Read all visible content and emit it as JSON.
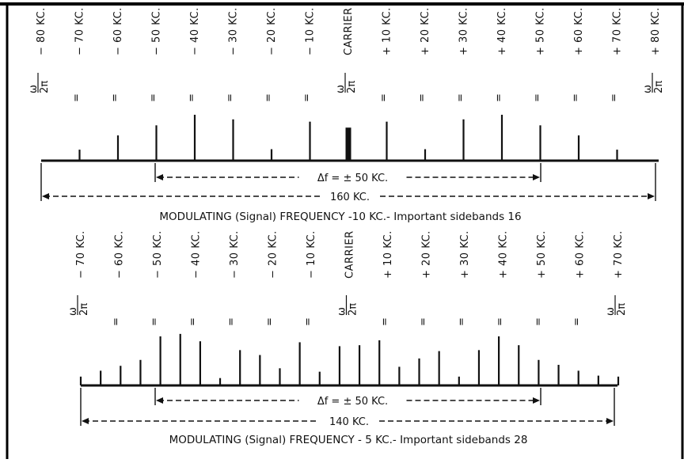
{
  "panels": [
    {
      "labels": [
        "− 80 KC.",
        "− 70 KC.",
        "− 60 KC.",
        "− 50 KC.",
        "− 40 KC.",
        "− 30 KC.",
        "− 20 KC.",
        "− 10 KC.",
        "CARRIER",
        "+ 10 KC.",
        "+ 20 KC.",
        "+ 30 KC.",
        "+ 40 KC.",
        "+ 50 KC.",
        "+ 60 KC.",
        "+ 70 KC.",
        "+ 80 KC."
      ],
      "omega_at": [
        0,
        8,
        16
      ],
      "amplitudes": [
        0,
        0.24,
        0.55,
        0.77,
        1.0,
        0.9,
        0.25,
        0.85,
        0.72,
        0.85,
        0.25,
        0.9,
        1.0,
        0.77,
        0.55,
        0.24,
        0
      ],
      "deviation_text": "Δf = ± 50 KC.",
      "bandwidth_text": "160 KC.",
      "caption": "MODULATING (Signal) FREQUENCY -10 KC.- Important sidebands 16"
    },
    {
      "labels": [
        "− 70 KC.",
        "− 60 KC.",
        "− 50 KC.",
        "− 40 KC.",
        "− 30 KC.",
        "− 20 KC.",
        "− 10 KC.",
        "CARRIER",
        "+ 10 KC.",
        "+ 20 KC.",
        "+ 30 KC.",
        "+ 40 KC.",
        "+ 50 KC.",
        "+ 60 KC.",
        "+ 70 KC."
      ],
      "omega_at": [
        0,
        7,
        14
      ],
      "amplitudes": [
        0.18,
        0.3,
        0.4,
        0.52,
        1.0,
        1.05,
        0.9,
        0.15,
        0.72,
        0.62,
        0.35,
        0.88,
        0.28,
        0.8,
        0.82,
        0.92,
        0.38,
        0.55,
        0.7,
        0.18,
        0.72,
        1.0,
        0.82,
        0.52,
        0.42,
        0.3,
        0.2,
        0.18
      ],
      "deviation_text": "Δf = ± 50 KC.",
      "bandwidth_text": "140 KC.",
      "caption": "MODULATING (Signal) FREQUENCY - 5 KC.- Important sidebands 28"
    }
  ],
  "omega_symbol": "ω",
  "two_pi": "2π",
  "ditto": "="
}
